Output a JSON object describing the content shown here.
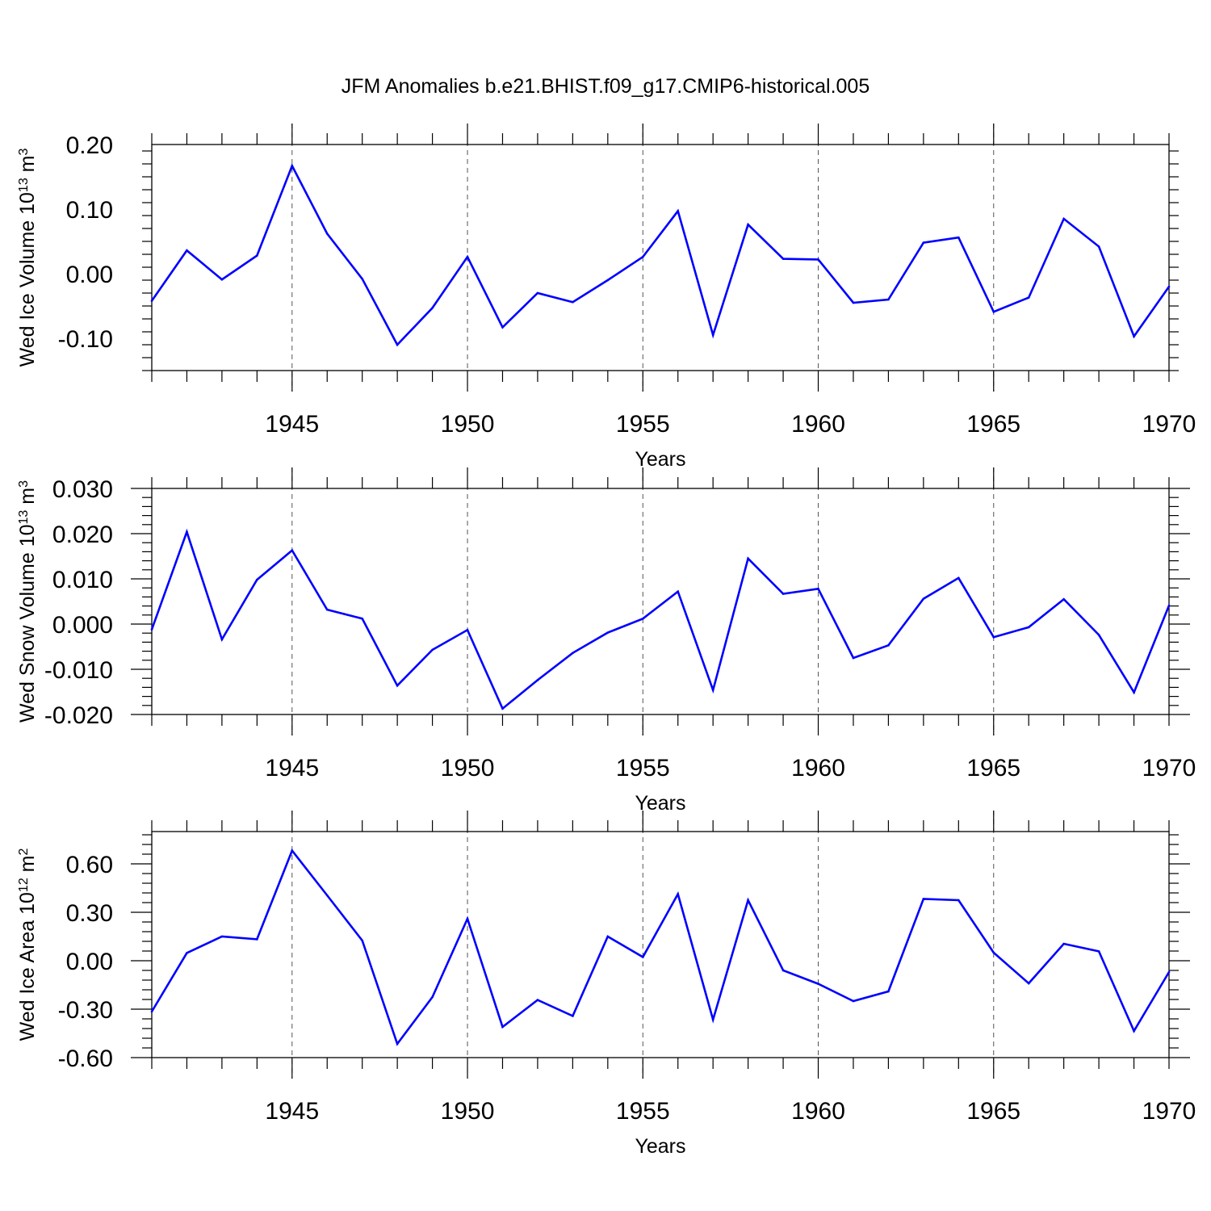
{
  "title": "JFM Anomalies b.e21.BHIST.f09_g17.CMIP6-historical.005",
  "colors": {
    "series": "#0000ff",
    "axes": "#000000",
    "grid": "#555555"
  },
  "chart_data": [
    {
      "type": "line",
      "xlabel": "Years",
      "ylabel_text": "Wed Ice Volume 10",
      "ylabel_exp": "13",
      "ylabel_unit": " m",
      "ylabel_unit_exp": "3",
      "xlim": [
        1941,
        1970
      ],
      "ylim": [
        -0.15,
        0.2
      ],
      "xticks": [
        1945,
        1950,
        1955,
        1960,
        1965,
        1970
      ],
      "xtick_labels": [
        "1945",
        "1950",
        "1955",
        "1960",
        "1965",
        "1970"
      ],
      "yticks": [
        0.2,
        0.1,
        0.0,
        -0.1
      ],
      "ytick_labels": [
        "0.20",
        "0.10",
        "0.00",
        "-0.10"
      ],
      "grid": "vertical dashed at major x ticks",
      "x": [
        1941,
        1942,
        1943,
        1944,
        1945,
        1946,
        1947,
        1948,
        1949,
        1950,
        1951,
        1952,
        1953,
        1954,
        1955,
        1956,
        1957,
        1958,
        1959,
        1960,
        1961,
        1962,
        1963,
        1964,
        1965,
        1966,
        1967,
        1968,
        1969,
        1970
      ],
      "values": [
        -0.042,
        0.036,
        -0.009,
        0.028,
        0.167,
        0.062,
        -0.008,
        -0.11,
        -0.053,
        0.026,
        -0.083,
        -0.03,
        -0.044,
        -0.01,
        0.026,
        0.097,
        -0.095,
        0.076,
        0.023,
        0.022,
        -0.045,
        -0.04,
        0.048,
        0.056,
        -0.059,
        -0.037,
        0.085,
        0.042,
        -0.097,
        -0.02
      ]
    },
    {
      "type": "line",
      "xlabel": "Years",
      "ylabel_text": "Wed Snow Volume 10",
      "ylabel_exp": "13",
      "ylabel_unit": " m",
      "ylabel_unit_exp": "3",
      "xlim": [
        1941,
        1970
      ],
      "ylim": [
        -0.02,
        0.03
      ],
      "xticks": [
        1945,
        1950,
        1955,
        1960,
        1965,
        1970
      ],
      "xtick_labels": [
        "1945",
        "1950",
        "1955",
        "1960",
        "1965",
        "1970"
      ],
      "yticks": [
        0.03,
        0.02,
        0.01,
        0.0,
        -0.01,
        -0.02
      ],
      "ytick_labels": [
        "0.030",
        "0.020",
        "0.010",
        "0.000",
        "-0.010",
        "-0.020"
      ],
      "grid": "vertical dashed at major x ticks",
      "x": [
        1941,
        1942,
        1943,
        1944,
        1945,
        1946,
        1947,
        1948,
        1949,
        1950,
        1951,
        1952,
        1953,
        1954,
        1955,
        1956,
        1957,
        1958,
        1959,
        1960,
        1961,
        1962,
        1963,
        1964,
        1965,
        1966,
        1967,
        1968,
        1969,
        1970
      ],
      "values": [
        -0.0012,
        0.0204,
        -0.0034,
        0.0098,
        0.0163,
        0.0032,
        0.0012,
        -0.0136,
        -0.0057,
        -0.0013,
        -0.0187,
        -0.0124,
        -0.0064,
        -0.0019,
        0.0012,
        0.0072,
        -0.0146,
        0.0145,
        0.0067,
        0.0078,
        -0.0075,
        -0.0047,
        0.0056,
        0.0102,
        -0.0029,
        -0.0007,
        0.0055,
        -0.0024,
        -0.0151,
        0.0041
      ]
    },
    {
      "type": "line",
      "xlabel": "Years",
      "ylabel_text": "Wed Ice Area 10",
      "ylabel_exp": "12",
      "ylabel_unit": " m",
      "ylabel_unit_exp": "2",
      "xlim": [
        1941,
        1970
      ],
      "ylim": [
        -0.6,
        0.8
      ],
      "xticks": [
        1945,
        1950,
        1955,
        1960,
        1965,
        1970
      ],
      "xtick_labels": [
        "1945",
        "1950",
        "1955",
        "1960",
        "1965",
        "1970"
      ],
      "yticks": [
        0.6,
        0.3,
        0.0,
        -0.3,
        -0.6
      ],
      "ytick_labels": [
        "0.60",
        "0.30",
        "0.00",
        "-0.30",
        "-0.60"
      ],
      "grid": "vertical dashed at major x ticks",
      "x": [
        1941,
        1942,
        1943,
        1944,
        1945,
        1946,
        1947,
        1948,
        1949,
        1950,
        1951,
        1952,
        1953,
        1954,
        1955,
        1956,
        1957,
        1958,
        1959,
        1960,
        1961,
        1962,
        1963,
        1964,
        1965,
        1966,
        1967,
        1968,
        1969,
        1970
      ],
      "values": [
        -0.315,
        0.048,
        0.15,
        0.133,
        0.682,
        0.405,
        0.125,
        -0.515,
        -0.225,
        0.26,
        -0.41,
        -0.243,
        -0.342,
        0.15,
        0.023,
        0.413,
        -0.365,
        0.375,
        -0.06,
        -0.143,
        -0.25,
        -0.19,
        0.383,
        0.375,
        0.05,
        -0.14,
        0.105,
        0.058,
        -0.435,
        -0.07
      ]
    }
  ]
}
